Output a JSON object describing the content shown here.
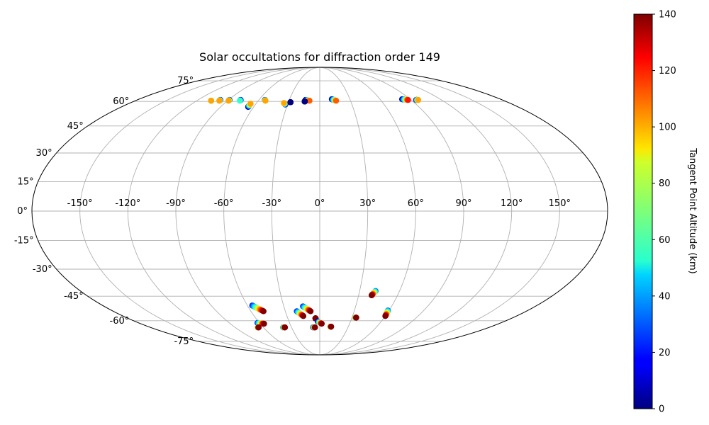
{
  "chart_data": {
    "type": "scatter",
    "projection": "mollweide",
    "title": "Solar occultations for diffraction order 149",
    "lon_ticks": [
      "-150°",
      "-120°",
      "-90°",
      "-60°",
      "-30°",
      "0°",
      "30°",
      "60°",
      "90°",
      "120°",
      "150°"
    ],
    "lon_tick_values": [
      -150,
      -120,
      -90,
      -60,
      -30,
      0,
      30,
      60,
      90,
      120,
      150
    ],
    "lat_ticks": [
      "75°",
      "60°",
      "45°",
      "30°",
      "15°",
      "0°",
      "-15°",
      "-30°",
      "-45°",
      "-60°",
      "-75°"
    ],
    "lat_tick_values": [
      75,
      60,
      45,
      30,
      15,
      0,
      -15,
      -30,
      -45,
      -60,
      -75
    ],
    "grid": true,
    "colorbar": {
      "label": "Tangent Point Altitude (km)",
      "range": [
        0,
        140
      ],
      "ticks": [
        "0",
        "20",
        "40",
        "60",
        "80",
        "100",
        "120",
        "140"
      ],
      "tick_values": [
        0,
        20,
        40,
        60,
        80,
        100,
        120,
        140
      ],
      "colormap": "jet"
    },
    "tracks": [
      {
        "lon_start": -106,
        "lat_start": 60.5,
        "lon_end": -106,
        "lat_end": 60.5,
        "alt_start": 0,
        "alt_end": 100
      },
      {
        "lon_start": -98,
        "lat_start": 61,
        "lon_end": -98,
        "lat_end": 60.5,
        "alt_start": 0,
        "alt_end": 100
      },
      {
        "lon_start": -89,
        "lat_start": 61,
        "lon_end": -89,
        "lat_end": 60.5,
        "alt_start": 0,
        "alt_end": 100
      },
      {
        "lon_start": -78,
        "lat_start": 61,
        "lon_end": -78,
        "lat_end": 60.5,
        "alt_start": 0,
        "alt_end": 60
      },
      {
        "lon_start": -65,
        "lat_start": 56.5,
        "lon_end": -65,
        "lat_end": 58.5,
        "alt_start": 0,
        "alt_end": 100
      },
      {
        "lon_start": -54,
        "lat_start": 61,
        "lon_end": -53,
        "lat_end": 60.5,
        "alt_start": 0,
        "alt_end": 100
      },
      {
        "lon_start": -32,
        "lat_start": 58,
        "lon_end": -34,
        "lat_end": 59,
        "alt_start": 0,
        "alt_end": 100
      },
      {
        "lon_start": -28,
        "lat_start": 59.5,
        "lon_end": -28,
        "lat_end": 59.5,
        "alt_start": 0,
        "alt_end": 0
      },
      {
        "lon_start": -14,
        "lat_start": 61,
        "lon_end": -10,
        "lat_end": 60.5,
        "alt_start": 0,
        "alt_end": 110
      },
      {
        "lon_start": -14.5,
        "lat_start": 60,
        "lon_end": -14.5,
        "lat_end": 60,
        "alt_start": 0,
        "alt_end": 0
      },
      {
        "lon_start": 12,
        "lat_start": 61.5,
        "lon_end": 16,
        "lat_end": 60.5,
        "alt_start": 0,
        "alt_end": 110
      },
      {
        "lon_start": 82,
        "lat_start": 61.5,
        "lon_end": 87,
        "lat_end": 61,
        "alt_start": 0,
        "alt_end": 120
      },
      {
        "lon_start": 95,
        "lat_start": 61,
        "lon_end": 97,
        "lat_end": 61,
        "alt_start": 0,
        "alt_end": 100
      },
      {
        "lon_start": -56,
        "lat_start": -50.5,
        "lon_end": -49,
        "lat_end": -54,
        "alt_start": 20,
        "alt_end": 140
      },
      {
        "lon_start": -20,
        "lat_start": -54,
        "lon_end": -15,
        "lat_end": -57,
        "alt_start": 20,
        "alt_end": 140
      },
      {
        "lon_start": -14,
        "lat_start": -51,
        "lon_end": -8,
        "lat_end": -54,
        "alt_start": 20,
        "alt_end": 140
      },
      {
        "lon_start": 42,
        "lat_start": -42,
        "lon_end": 40,
        "lat_end": -44.5,
        "alt_start": 30,
        "alt_end": 140
      },
      {
        "lon_start": 59,
        "lat_start": -53.5,
        "lon_end": 60,
        "lat_end": -57,
        "alt_start": 30,
        "alt_end": 140
      },
      {
        "lon_start": 33,
        "lat_start": -58,
        "lon_end": 34,
        "lat_end": -58,
        "alt_start": 40,
        "alt_end": 140
      },
      {
        "lon_start": -62,
        "lat_start": -61.5,
        "lon_end": -56,
        "lat_end": -62,
        "alt_start": 20,
        "alt_end": 140
      },
      {
        "lon_start": -66,
        "lat_start": -64.5,
        "lon_end": -65,
        "lat_end": -64.5,
        "alt_start": 60,
        "alt_end": 140
      },
      {
        "lon_start": -39,
        "lat_start": -64.5,
        "lon_end": -37,
        "lat_end": -64.5,
        "alt_start": 30,
        "alt_end": 140
      },
      {
        "lon_start": -7,
        "lat_start": -64.5,
        "lon_end": -5,
        "lat_end": -64.5,
        "alt_start": 0,
        "alt_end": 140
      },
      {
        "lon_start": -4,
        "lat_start": -58.5,
        "lon_end": -4,
        "lat_end": -58.5,
        "alt_start": 140,
        "alt_end": 140
      },
      {
        "lon_start": -2,
        "lat_start": -60.5,
        "lon_end": 2,
        "lat_end": -62,
        "alt_start": 0,
        "alt_end": 140
      },
      {
        "lon_start": 11,
        "lat_start": -64,
        "lon_end": 12,
        "lat_end": -64,
        "alt_start": 60,
        "alt_end": 140
      }
    ]
  }
}
